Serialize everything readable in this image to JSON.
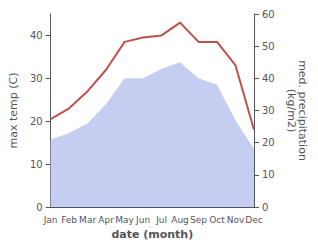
{
  "chart_data": {
    "type": "line",
    "categories": [
      "Jan",
      "Feb",
      "Mar",
      "Apr",
      "May",
      "Jun",
      "Jul",
      "Aug",
      "Sep",
      "Oct",
      "Nov",
      "Dec"
    ],
    "xlabel": "date (month)",
    "ylabel": "max temp (C)",
    "y2label": "med. precipitation\n(kg/m2)",
    "series": [
      {
        "type": "area",
        "axis": "y2",
        "color": "#c5cef0",
        "values": [
          21,
          23,
          26,
          32,
          40,
          40,
          43,
          45,
          40,
          38,
          27,
          18
        ]
      },
      {
        "type": "line",
        "axis": "y",
        "color": "#c0504d",
        "values": [
          20.5,
          23.0,
          27.0,
          32.0,
          38.5,
          39.5,
          40.0,
          43.0,
          38.5,
          38.5,
          33.0,
          18.0
        ]
      }
    ],
    "ylim": [
      0,
      45
    ],
    "yticks": [
      0,
      10,
      20,
      30,
      40
    ],
    "y2lim": [
      0,
      60
    ],
    "y2ticks": [
      0,
      10,
      20,
      30,
      40,
      50,
      60
    ],
    "grid": false
  }
}
